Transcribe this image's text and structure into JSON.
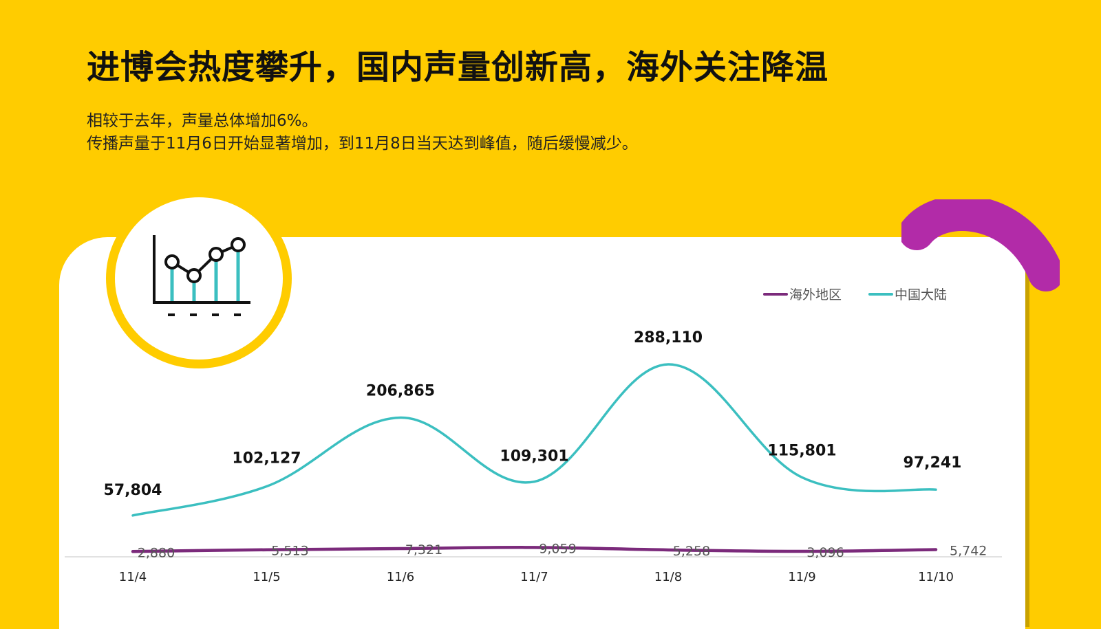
{
  "title": "进博会热度攀升，国内声量创新高，海外关注降温",
  "description": [
    "相较于去年，声量总体增加6%。",
    "传播声量于11月6日开始显著增加，到11月8日当天达到峰值，随后缓慢减少。"
  ],
  "icons": {
    "badge": "line-chart-icon",
    "decoration": "brush-stroke"
  },
  "colors": {
    "background": "#FFCC00",
    "card": "#FFFFFF",
    "china_series": "#3BBFC0",
    "overseas_series": "#7B2A7B",
    "decoration": "#B22BA8"
  },
  "chart_data": {
    "type": "line",
    "categories": [
      "11/4",
      "11/5",
      "11/6",
      "11/7",
      "11/8",
      "11/9",
      "11/10"
    ],
    "series": [
      {
        "name": "海外地区",
        "values": [
          2880,
          5513,
          7321,
          9059,
          5258,
          3096,
          5742
        ],
        "labels": [
          "2,880",
          "5,513",
          "7,321",
          "9,059",
          "5,258",
          "3,096",
          "5,742"
        ]
      },
      {
        "name": "中国大陆",
        "values": [
          57804,
          102127,
          206865,
          109301,
          288110,
          115801,
          97241
        ],
        "labels": [
          "57,804",
          "102,127",
          "206,865",
          "109,301",
          "288,110",
          "115,801",
          "97,241"
        ]
      }
    ],
    "legend_position": "top-right",
    "smooth": true,
    "grid": false,
    "ylim": [
      0,
      300000
    ]
  }
}
